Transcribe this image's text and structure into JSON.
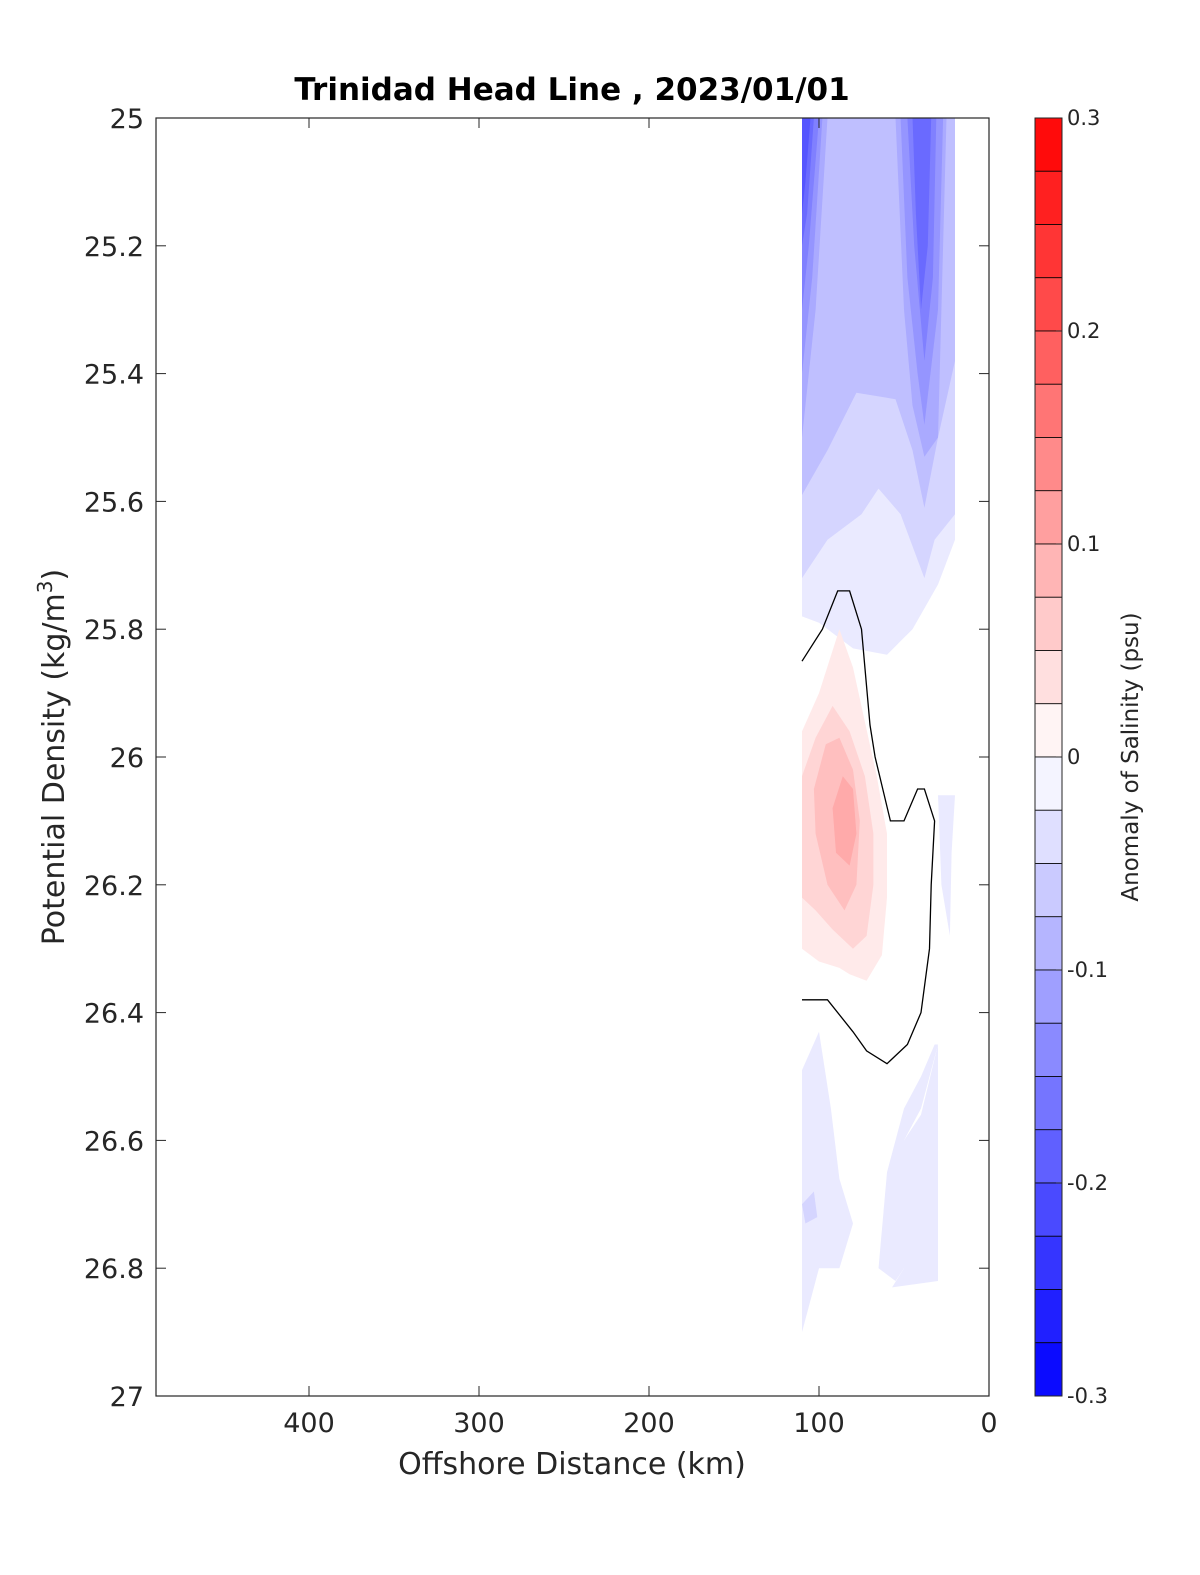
{
  "chart_data": {
    "type": "contour",
    "title": "Trinidad Head Line , 2023/01/01",
    "xlabel": "Offshore Distance (km)",
    "ylabel": "Potential Density (kg/m³)",
    "ylabel_base": "Potential Density (kg/m",
    "ylabel_sup": "3",
    "ylabel_end": ")",
    "xlim": [
      490,
      0
    ],
    "x_reversed": true,
    "ylim": [
      25,
      27
    ],
    "y_reversed": true,
    "x_ticks": [
      400,
      300,
      200,
      100,
      0
    ],
    "x_tick_labels": [
      "400",
      "300",
      "200",
      "100",
      "0"
    ],
    "y_ticks": [
      25,
      25.2,
      25.4,
      25.6,
      25.8,
      26,
      26.2,
      26.4,
      26.6,
      26.8,
      27
    ],
    "y_tick_labels": [
      "25",
      "25.2",
      "25.4",
      "25.6",
      "25.8",
      "26",
      "26.2",
      "26.4",
      "26.6",
      "26.8",
      "27"
    ],
    "colorbar": {
      "label": "Anomaly of Salinity (psu)",
      "clim": [
        -0.3,
        0.3
      ],
      "levels": 24,
      "tick_values": [
        0.3,
        0.2,
        0.1,
        0,
        -0.1,
        -0.2,
        -0.3
      ],
      "tick_labels": [
        "0.3",
        "0.2",
        "0.1",
        "0",
        "-0.1",
        "-0.2",
        "-0.3"
      ],
      "low_color": "#0000ff",
      "mid_color": "#ffffff",
      "high_color": "#ff0000"
    },
    "filled_regions": [
      {
        "anomaly": -0.025,
        "points": [
          [
            110,
            25
          ],
          [
            20,
            25
          ],
          [
            20,
            25.66
          ],
          [
            30,
            25.73
          ],
          [
            45,
            25.8
          ],
          [
            60,
            25.84
          ],
          [
            80,
            25.83
          ],
          [
            100,
            25.79
          ],
          [
            110,
            25.78
          ]
        ]
      },
      {
        "anomaly": -0.05,
        "points": [
          [
            110,
            25
          ],
          [
            20,
            25
          ],
          [
            20,
            25.62
          ],
          [
            32,
            25.66
          ],
          [
            38,
            25.72
          ],
          [
            52,
            25.62
          ],
          [
            65,
            25.58
          ],
          [
            75,
            25.62
          ],
          [
            95,
            25.66
          ],
          [
            110,
            25.72
          ]
        ]
      },
      {
        "anomaly": -0.075,
        "points": [
          [
            110,
            25
          ],
          [
            20,
            25
          ],
          [
            20,
            25.38
          ],
          [
            30,
            25.5
          ],
          [
            38,
            25.61
          ],
          [
            45,
            25.52
          ],
          [
            55,
            25.44
          ],
          [
            78,
            25.43
          ],
          [
            95,
            25.52
          ],
          [
            110,
            25.59
          ]
        ]
      },
      {
        "anomaly": -0.1,
        "points": [
          [
            110,
            25
          ],
          [
            55,
            25
          ],
          [
            50,
            25.3
          ],
          [
            45,
            25.45
          ],
          [
            38,
            25.53
          ],
          [
            30,
            25.5
          ],
          [
            28,
            25.3
          ],
          [
            25,
            25
          ],
          [
            110,
            25
          ]
        ]
      },
      {
        "anomaly": -0.1,
        "points": [
          [
            110,
            25
          ],
          [
            95,
            25
          ],
          [
            102,
            25.3
          ],
          [
            110,
            25.5
          ]
        ]
      },
      {
        "anomaly": -0.125,
        "points": [
          [
            52,
            25
          ],
          [
            27,
            25
          ],
          [
            30,
            25.3
          ],
          [
            38,
            25.48
          ],
          [
            42,
            25.4
          ],
          [
            48,
            25.25
          ]
        ]
      },
      {
        "anomaly": -0.125,
        "points": [
          [
            110,
            25
          ],
          [
            98,
            25
          ],
          [
            104,
            25.25
          ],
          [
            110,
            25.4
          ]
        ]
      },
      {
        "anomaly": -0.15,
        "points": [
          [
            48,
            25
          ],
          [
            31,
            25
          ],
          [
            33,
            25.25
          ],
          [
            38,
            25.38
          ],
          [
            44,
            25.2
          ]
        ]
      },
      {
        "anomaly": -0.15,
        "points": [
          [
            110,
            25
          ],
          [
            100,
            25
          ],
          [
            106,
            25.2
          ],
          [
            110,
            25.3
          ]
        ]
      },
      {
        "anomaly": -0.175,
        "points": [
          [
            45,
            25
          ],
          [
            34,
            25
          ],
          [
            36,
            25.2
          ],
          [
            40,
            25.3
          ],
          [
            43,
            25.15
          ]
        ]
      },
      {
        "anomaly": -0.175,
        "points": [
          [
            110,
            25
          ],
          [
            103,
            25
          ],
          [
            107,
            25.15
          ],
          [
            110,
            25.2
          ]
        ]
      },
      {
        "anomaly": -0.2,
        "points": [
          [
            110,
            25
          ],
          [
            105,
            25
          ],
          [
            108,
            25.1
          ],
          [
            110,
            25.15
          ]
        ]
      },
      {
        "anomaly": -0.025,
        "points": [
          [
            20,
            26.06
          ],
          [
            22,
            26.15
          ],
          [
            23,
            26.28
          ],
          [
            28,
            26.2
          ],
          [
            30,
            26.06
          ]
        ]
      },
      {
        "anomaly": -0.025,
        "points": [
          [
            110,
            26.49
          ],
          [
            100,
            26.43
          ],
          [
            93,
            26.55
          ],
          [
            88,
            26.66
          ],
          [
            80,
            26.73
          ],
          [
            88,
            26.8
          ],
          [
            100,
            26.8
          ],
          [
            105,
            26.85
          ],
          [
            110,
            26.9
          ]
        ]
      },
      {
        "anomaly": -0.025,
        "points": [
          [
            30,
            26.45
          ],
          [
            40,
            26.55
          ],
          [
            50,
            26.6
          ],
          [
            50,
            26.8
          ],
          [
            55,
            26.82
          ],
          [
            65,
            26.8
          ],
          [
            60,
            26.65
          ],
          [
            50,
            26.55
          ],
          [
            40,
            26.5
          ],
          [
            32,
            26.45
          ]
        ]
      },
      {
        "anomaly": -0.025,
        "points": [
          [
            30,
            26.45
          ],
          [
            40,
            26.56
          ],
          [
            50,
            26.6
          ],
          [
            50,
            26.8
          ],
          [
            57,
            26.83
          ],
          [
            30,
            26.82
          ]
        ]
      },
      {
        "anomaly": -0.05,
        "points": [
          [
            110,
            26.7
          ],
          [
            103,
            26.68
          ],
          [
            101,
            26.72
          ],
          [
            108,
            26.73
          ]
        ]
      },
      {
        "anomaly": 0.025,
        "points": [
          [
            110,
            25.96
          ],
          [
            100,
            25.9
          ],
          [
            88,
            25.8
          ],
          [
            80,
            25.86
          ],
          [
            66,
            26.03
          ],
          [
            60,
            26.12
          ],
          [
            60,
            26.22
          ],
          [
            63,
            26.31
          ],
          [
            72,
            26.35
          ],
          [
            82,
            26.34
          ],
          [
            88,
            26.33
          ],
          [
            100,
            26.32
          ],
          [
            110,
            26.3
          ]
        ]
      },
      {
        "anomaly": 0.05,
        "points": [
          [
            110,
            26.03
          ],
          [
            102,
            25.97
          ],
          [
            92,
            25.92
          ],
          [
            82,
            25.96
          ],
          [
            73,
            26.03
          ],
          [
            68,
            26.12
          ],
          [
            68,
            26.2
          ],
          [
            72,
            26.28
          ],
          [
            80,
            26.3
          ],
          [
            92,
            26.27
          ],
          [
            102,
            26.24
          ],
          [
            110,
            26.22
          ]
        ]
      },
      {
        "anomaly": 0.075,
        "points": [
          [
            103,
            26.05
          ],
          [
            96,
            25.98
          ],
          [
            88,
            25.97
          ],
          [
            80,
            26.02
          ],
          [
            76,
            26.1
          ],
          [
            78,
            26.2
          ],
          [
            85,
            26.24
          ],
          [
            95,
            26.2
          ],
          [
            102,
            26.12
          ]
        ]
      },
      {
        "anomaly": 0.1,
        "points": [
          [
            92,
            26.08
          ],
          [
            86,
            26.03
          ],
          [
            80,
            26.05
          ],
          [
            78,
            26.12
          ],
          [
            82,
            26.17
          ],
          [
            90,
            26.15
          ]
        ]
      }
    ],
    "contour_lines": [
      {
        "level": 0,
        "points": [
          [
            110,
            25.85
          ],
          [
            98,
            25.8
          ],
          [
            89,
            25.74
          ],
          [
            82,
            25.74
          ],
          [
            75,
            25.8
          ],
          [
            70,
            25.95
          ],
          [
            67,
            26.0
          ],
          [
            58,
            26.1
          ],
          [
            50,
            26.1
          ],
          [
            42,
            26.05
          ],
          [
            38,
            26.05
          ],
          [
            32,
            26.1
          ],
          [
            34,
            26.2
          ],
          [
            35,
            26.3
          ],
          [
            40,
            26.4
          ],
          [
            48,
            26.45
          ],
          [
            60,
            26.48
          ],
          [
            72,
            26.46
          ],
          [
            80,
            26.43
          ],
          [
            95,
            26.38
          ],
          [
            110,
            26.38
          ]
        ]
      }
    ]
  }
}
